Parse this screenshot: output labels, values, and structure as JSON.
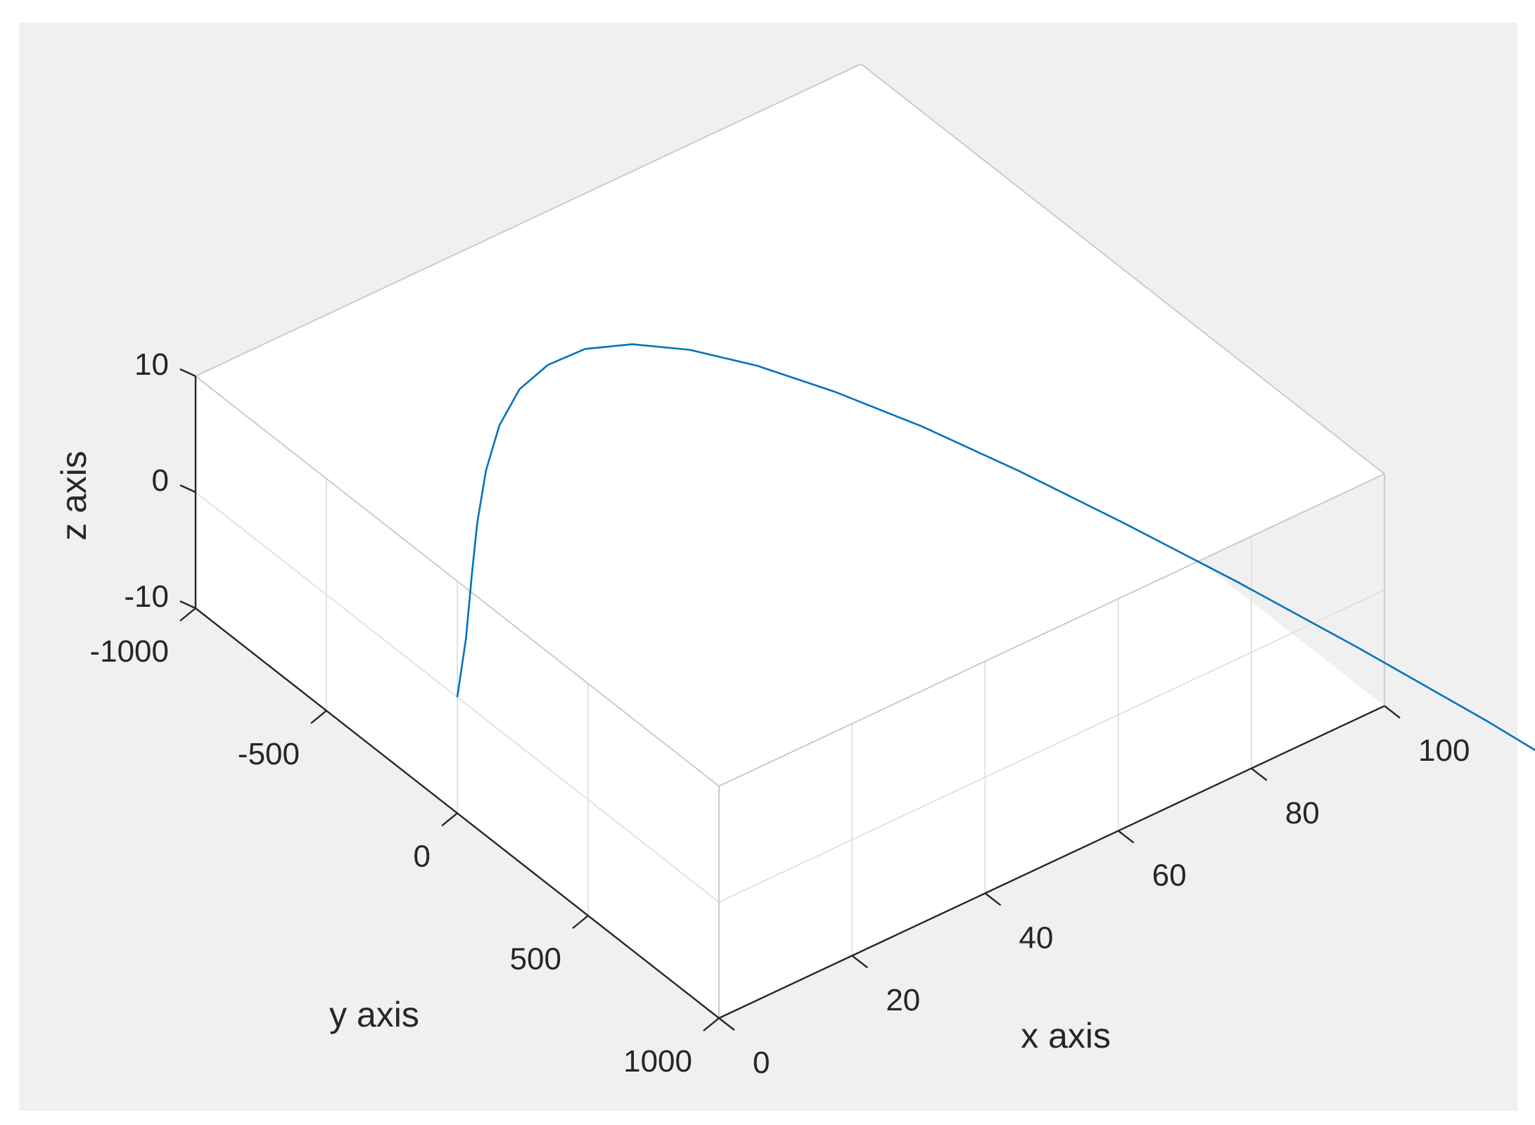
{
  "figure": {
    "background_color": "#f0f0f0",
    "axes_background_color": "#ffffff"
  },
  "chart_data": {
    "type": "line3d",
    "title": "",
    "xlabel": "x axis",
    "ylabel": "y axis",
    "zlabel": "z axis",
    "xlim": [
      0,
      100
    ],
    "ylim": [
      -1000,
      1000
    ],
    "zlim": [
      -10,
      10
    ],
    "xticks": [
      0,
      20,
      40,
      60,
      80,
      100
    ],
    "xtick_labels": [
      "0",
      "20",
      "40",
      "60",
      "80",
      "100"
    ],
    "yticks": [
      -1000,
      -500,
      0,
      500,
      1000
    ],
    "ytick_labels": [
      "-1000",
      "-500",
      "0",
      "500",
      "1000"
    ],
    "zticks": [
      -10,
      0,
      10
    ],
    "ztick_labels": [
      "-10",
      "0",
      "10"
    ],
    "grid": true,
    "box": true,
    "line_color": "#0072bd",
    "series": [
      {
        "x": [
          0,
          5,
          10,
          15,
          20,
          25,
          30,
          35,
          40,
          45,
          50,
          55,
          60,
          65,
          70,
          75,
          80,
          85,
          90,
          95,
          100
        ],
        "y": [
          0,
          -94,
          -200,
          -305,
          -399,
          -475,
          -525,
          -544,
          -529,
          -476,
          -384,
          -253,
          -84,
          121,
          362,
          636,
          942,
          1279,
          1645,
          2039,
          2459
        ],
        "z": [
          0,
          2,
          4,
          5.6,
          7.1,
          8.3,
          9.2,
          9.6,
          9.9,
          9.9,
          9.7,
          9.3,
          8.7,
          8,
          7.1,
          6.1,
          5.1,
          4,
          2.8,
          1.3,
          0
        ]
      }
    ]
  }
}
